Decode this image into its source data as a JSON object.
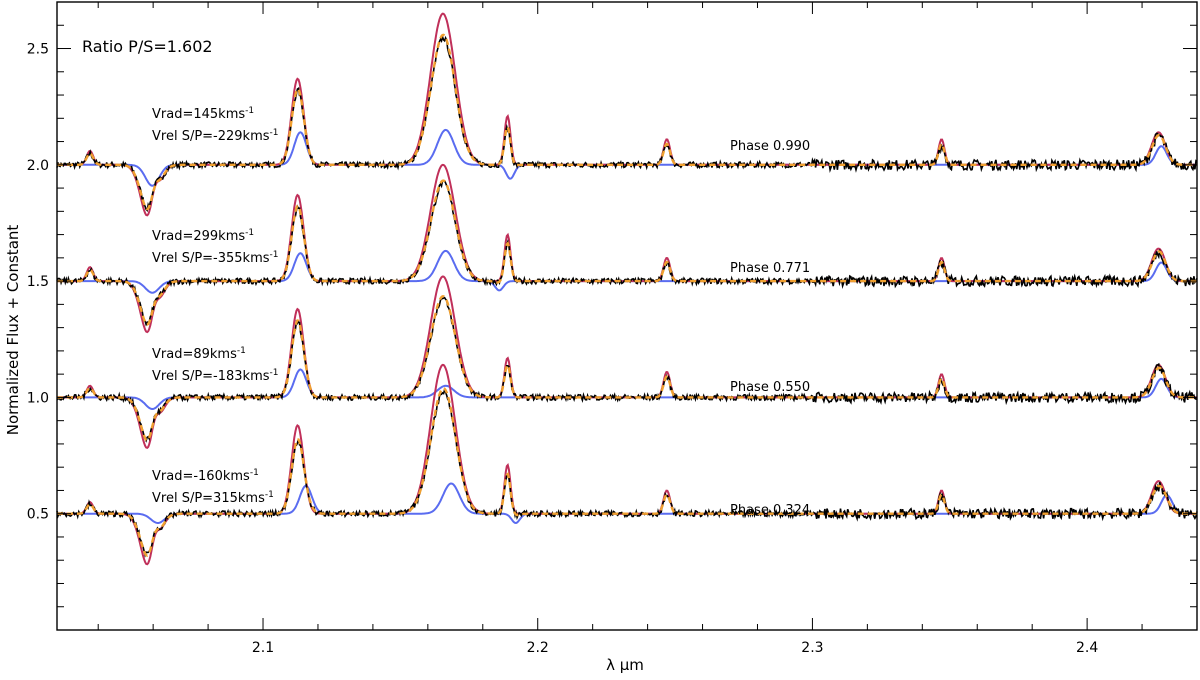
{
  "chart_data": {
    "type": "line",
    "title": "",
    "xlabel": "λ μm",
    "ylabel": "Normalized Flux + Constant",
    "xlim": [
      2.025,
      2.44
    ],
    "ylim": [
      0.0,
      2.7
    ],
    "x_ticks": [
      2.1,
      2.2,
      2.3,
      2.4
    ],
    "x_tick_labels": [
      "2.1",
      "2.2",
      "2.3",
      "2.4"
    ],
    "y_ticks": [
      0.5,
      1.0,
      1.5,
      2.0,
      2.5
    ],
    "y_tick_labels": [
      "0.5",
      "1.0",
      "1.5",
      "2.0",
      "2.5"
    ],
    "ratio_label": "Ratio P/S=1.602",
    "series_colors": {
      "observed": "#000000",
      "model_total": "#f0a030",
      "primary": "#c0305a",
      "secondary": "#5a6cf0"
    },
    "panels": [
      {
        "phase_label": "Phase 0.990",
        "vrad_label": "Vrad=145kms",
        "vrel_label": "Vrel S/P=-229kms",
        "superscript": "-1",
        "offset": 2.0,
        "shift_p": 0.0,
        "shift_s": 0.001,
        "primary_lines": [
          {
            "x": 2.037,
            "depth": 0.06,
            "width": 0.0012
          },
          {
            "x": 2.0587,
            "depth": -0.25,
            "width": 0.003
          },
          {
            "x": 2.0605,
            "depth": 0.11,
            "width": 0.0015
          },
          {
            "x": 2.1126,
            "depth": 0.37,
            "width": 0.0022
          },
          {
            "x": 2.1655,
            "depth": 0.65,
            "width": 0.0045
          },
          {
            "x": 2.189,
            "depth": 0.21,
            "width": 0.0011
          },
          {
            "x": 2.247,
            "depth": 0.11,
            "width": 0.0012
          },
          {
            "x": 2.347,
            "depth": 0.11,
            "width": 0.0011
          },
          {
            "x": 2.426,
            "depth": 0.14,
            "width": 0.0025
          }
        ],
        "secondary_lines": [
          {
            "x": 2.0587,
            "depth": -0.09,
            "width": 0.0025
          },
          {
            "x": 2.1126,
            "depth": 0.14,
            "width": 0.0022
          },
          {
            "x": 2.1655,
            "depth": 0.15,
            "width": 0.003
          },
          {
            "x": 2.189,
            "depth": -0.06,
            "width": 0.0015
          },
          {
            "x": 2.426,
            "depth": 0.08,
            "width": 0.002
          }
        ]
      },
      {
        "phase_label": "Phase 0.771",
        "vrad_label": "Vrad=299kms",
        "vrel_label": "Vrel S/P=-355kms",
        "superscript": "-1",
        "offset": 1.5,
        "shift_p": 0.0,
        "shift_s": 0.001,
        "primary_lines": [
          {
            "x": 2.037,
            "depth": 0.06,
            "width": 0.0012
          },
          {
            "x": 2.0587,
            "depth": -0.25,
            "width": 0.003
          },
          {
            "x": 2.0605,
            "depth": 0.1,
            "width": 0.0015
          },
          {
            "x": 2.1126,
            "depth": 0.37,
            "width": 0.0022
          },
          {
            "x": 2.1655,
            "depth": 0.5,
            "width": 0.0045
          },
          {
            "x": 2.189,
            "depth": 0.2,
            "width": 0.0011
          },
          {
            "x": 2.247,
            "depth": 0.1,
            "width": 0.0012
          },
          {
            "x": 2.347,
            "depth": 0.1,
            "width": 0.0011
          },
          {
            "x": 2.426,
            "depth": 0.14,
            "width": 0.0025
          }
        ],
        "secondary_lines": [
          {
            "x": 2.0587,
            "depth": -0.05,
            "width": 0.0025
          },
          {
            "x": 2.1126,
            "depth": 0.12,
            "width": 0.0022
          },
          {
            "x": 2.1655,
            "depth": 0.13,
            "width": 0.003
          },
          {
            "x": 2.185,
            "depth": -0.04,
            "width": 0.0015
          },
          {
            "x": 2.426,
            "depth": 0.08,
            "width": 0.002
          }
        ]
      },
      {
        "phase_label": "Phase 0.550",
        "vrad_label": "Vrad=89kms",
        "vrel_label": "Vrel S/P=-183kms",
        "superscript": "-1",
        "offset": 1.0,
        "shift_p": 0.0,
        "shift_s": 0.001,
        "primary_lines": [
          {
            "x": 2.037,
            "depth": 0.05,
            "width": 0.0012
          },
          {
            "x": 2.0587,
            "depth": -0.25,
            "width": 0.003
          },
          {
            "x": 2.0605,
            "depth": 0.11,
            "width": 0.0015
          },
          {
            "x": 2.1126,
            "depth": 0.38,
            "width": 0.0022
          },
          {
            "x": 2.1655,
            "depth": 0.52,
            "width": 0.0045
          },
          {
            "x": 2.189,
            "depth": 0.17,
            "width": 0.0011
          },
          {
            "x": 2.247,
            "depth": 0.11,
            "width": 0.0012
          },
          {
            "x": 2.347,
            "depth": 0.1,
            "width": 0.0011
          },
          {
            "x": 2.426,
            "depth": 0.14,
            "width": 0.0025
          }
        ],
        "secondary_lines": [
          {
            "x": 2.0587,
            "depth": -0.05,
            "width": 0.0025
          },
          {
            "x": 2.1126,
            "depth": 0.12,
            "width": 0.0022
          },
          {
            "x": 2.1655,
            "depth": 0.05,
            "width": 0.003
          },
          {
            "x": 2.426,
            "depth": 0.08,
            "width": 0.002
          }
        ]
      },
      {
        "phase_label": "Phase 0.324",
        "vrad_label": "Vrad=-160kms",
        "vrel_label": "Vrel S/P=315kms",
        "superscript": "-1",
        "offset": 0.5,
        "shift_p": 0.0,
        "shift_s": 0.003,
        "primary_lines": [
          {
            "x": 2.037,
            "depth": 0.05,
            "width": 0.0012
          },
          {
            "x": 2.0587,
            "depth": -0.25,
            "width": 0.003
          },
          {
            "x": 2.0605,
            "depth": 0.11,
            "width": 0.0015
          },
          {
            "x": 2.1126,
            "depth": 0.38,
            "width": 0.0022
          },
          {
            "x": 2.1655,
            "depth": 0.64,
            "width": 0.0045
          },
          {
            "x": 2.189,
            "depth": 0.21,
            "width": 0.0011
          },
          {
            "x": 2.247,
            "depth": 0.1,
            "width": 0.0012
          },
          {
            "x": 2.347,
            "depth": 0.1,
            "width": 0.0011
          },
          {
            "x": 2.426,
            "depth": 0.14,
            "width": 0.0025
          }
        ],
        "secondary_lines": [
          {
            "x": 2.0587,
            "depth": -0.04,
            "width": 0.0025
          },
          {
            "x": 2.1126,
            "depth": 0.12,
            "width": 0.0022
          },
          {
            "x": 2.1655,
            "depth": 0.13,
            "width": 0.003
          },
          {
            "x": 2.189,
            "depth": -0.04,
            "width": 0.0015
          },
          {
            "x": 2.426,
            "depth": 0.08,
            "width": 0.002
          }
        ]
      }
    ]
  }
}
